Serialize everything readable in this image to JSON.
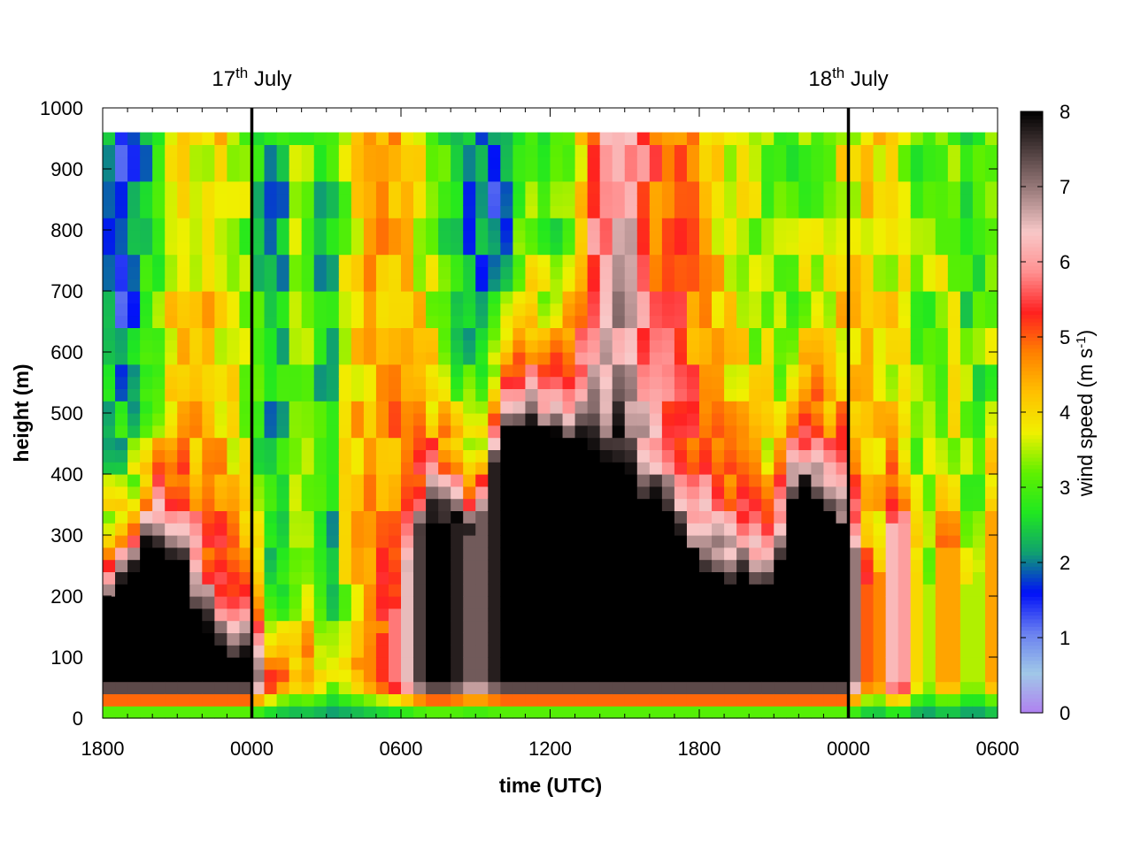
{
  "chart_data": {
    "type": "heatmap",
    "title": "",
    "xlabel": "time (UTC)",
    "ylabel": "height (m)",
    "colorbar_label": "wind speed (m s",
    "colorbar_label_sup": "-1",
    "colorbar_label_end": ")",
    "x_tick_labels": [
      "1800",
      "0000",
      "0600",
      "1200",
      "1800",
      "0000",
      "0600"
    ],
    "x_tick_hours": [
      0,
      6,
      12,
      18,
      24,
      30,
      36
    ],
    "x_range_hours": [
      0,
      36
    ],
    "y_ticks": [
      0,
      100,
      200,
      300,
      400,
      500,
      600,
      700,
      800,
      900,
      1000
    ],
    "ylim": [
      0,
      1000
    ],
    "data_top_height": 960,
    "color_range": [
      0,
      8
    ],
    "colorbar_ticks": [
      0,
      1,
      2,
      3,
      4,
      5,
      6,
      7,
      8
    ],
    "colormap": [
      "#b080f0",
      "#a0c8e8",
      "#6a80f0",
      "#0010f8",
      "#10a070",
      "#20e820",
      "#60f000",
      "#f0f000",
      "#ffc000",
      "#ff8000",
      "#ff2020",
      "#ff9090",
      "#f8c8c8",
      "#a08080",
      "#504040",
      "#000000"
    ],
    "day_markers": [
      {
        "hour": 6,
        "day": "17",
        "suffix": "th",
        "month": "July"
      },
      {
        "hour": 30,
        "day": "18",
        "suffix": "th",
        "month": "July"
      }
    ],
    "grid": false,
    "time_step_hours": 0.5,
    "height_step_m": 20,
    "surface_layer": {
      "profile": [
        0,
        20,
        50,
        100,
        200,
        350,
        500,
        700,
        900,
        960
      ],
      "speed_hours": [
        0,
        1,
        1.5,
        2,
        3,
        4,
        5,
        6,
        6.5,
        7,
        8,
        8.5,
        9,
        10,
        11,
        12,
        13,
        14,
        15,
        16,
        17,
        18,
        19,
        20,
        21,
        22,
        23,
        24,
        25,
        26,
        27,
        28,
        29,
        30,
        31,
        32,
        33,
        34,
        35,
        36
      ],
      "jet_speed": [
        8,
        8,
        8,
        8,
        8,
        8,
        8,
        8,
        6,
        5,
        4,
        5,
        3,
        4,
        5,
        6,
        8,
        8,
        7,
        8,
        8,
        8,
        8,
        8,
        8,
        8,
        8,
        8,
        8,
        8,
        8,
        8,
        8,
        8,
        4,
        7,
        3,
        5,
        3,
        5
      ],
      "jet_top": [
        180,
        230,
        260,
        300,
        260,
        160,
        100,
        90,
        70,
        60,
        80,
        100,
        60,
        80,
        120,
        200,
        330,
        330,
        300,
        470,
        480,
        470,
        460,
        440,
        400,
        350,
        300,
        250,
        230,
        230,
        220,
        400,
        350,
        300,
        200,
        350,
        200,
        300,
        200,
        380
      ],
      "upper_speed": [
        2,
        1.5,
        2,
        2.5,
        4,
        4,
        4,
        3,
        2.5,
        2,
        3.5,
        3,
        2,
        4,
        4.5,
        4.5,
        3.5,
        2.5,
        2,
        1.5,
        3,
        2.5,
        3.5,
        6,
        6.5,
        5,
        5,
        4.5,
        4,
        3.5,
        3.2,
        3,
        3.5,
        3.8,
        4,
        3.5,
        3,
        3.5,
        2.8,
        3.2
      ]
    }
  }
}
